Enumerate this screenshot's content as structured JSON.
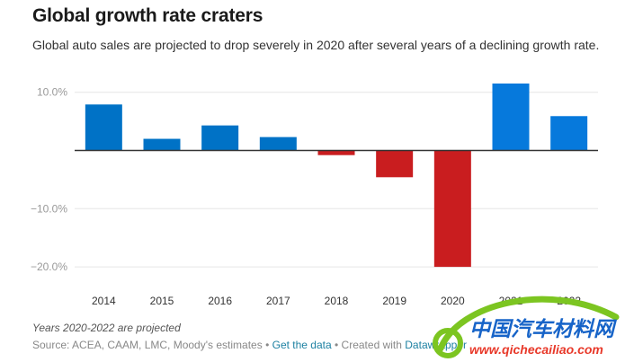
{
  "header": {
    "title": "Global growth rate craters",
    "subtitle": "Global auto sales are projected to drop severely in 2020 after several years of a declining growth rate."
  },
  "footer": {
    "notes": "Years 2020-2022 are projected",
    "source_prefix": "Source: ACEA, CAAM, LMC, Moody's estimates",
    "separator": "•",
    "get_data_label": "Get the data",
    "created_with": "Created with",
    "datawrapper_label": "Datawrapper"
  },
  "watermark": {
    "cn_text": "中国汽车材料网",
    "url_text": "www.qichecailiao.com"
  },
  "colors": {
    "positive_historical": "#0072c6",
    "positive_projected": "#0679dc",
    "negative": "#c91d1f",
    "gridline": "#e6e6e6",
    "baseline": "#333333"
  },
  "chart_data": {
    "type": "bar",
    "title": "Global growth rate craters",
    "xlabel": "",
    "ylabel": "",
    "categories": [
      "2014",
      "2015",
      "2016",
      "2017",
      "2018",
      "2019",
      "2020",
      "2021",
      "2022"
    ],
    "values": [
      7.9,
      2.0,
      4.3,
      2.3,
      -0.8,
      -4.6,
      -20.0,
      11.5,
      5.9
    ],
    "projected": [
      false,
      false,
      false,
      false,
      false,
      false,
      true,
      true,
      true
    ],
    "unit": "%",
    "ylim": [
      -20,
      12
    ],
    "yticks": [
      10,
      0,
      -10,
      -20
    ],
    "ytick_labels": [
      "10.0%",
      "",
      "−10.0%",
      "−20.0%"
    ],
    "grid": true,
    "legend": "none"
  }
}
